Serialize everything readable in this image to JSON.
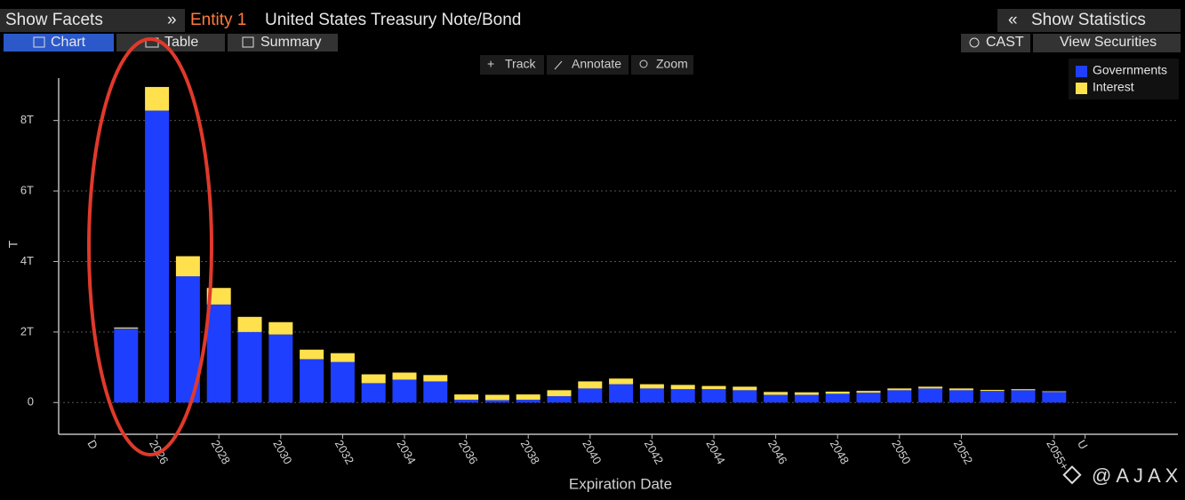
{
  "header": {
    "show_facets": "Show Facets",
    "expand": "»",
    "entity": "Entity 1",
    "security": "United States Treasury Note/Bond",
    "collapse": "«",
    "show_statistics": "Show Statistics"
  },
  "tabs": [
    "Chart",
    "Table",
    "Summary"
  ],
  "buttons": [
    "CAST",
    "View Securities"
  ],
  "tools": [
    "Track",
    "Annotate",
    "Zoom"
  ],
  "watermark": "@AJAX",
  "chart_data": {
    "type": "bar",
    "stacked": true,
    "x_label": "Expiration Date",
    "y_label": "T",
    "categories": [
      "D",
      null,
      "2026",
      null,
      "2028",
      null,
      "2030",
      null,
      "2032",
      null,
      "2034",
      null,
      "2036",
      null,
      "2038",
      null,
      "2040",
      null,
      "2042",
      null,
      "2044",
      null,
      "2046",
      null,
      "2048",
      null,
      "2050",
      null,
      "2052",
      null,
      null,
      "2055+",
      "U"
    ],
    "series": [
      {
        "name": "Governments",
        "color": "#1f3fff",
        "values": [
          null,
          2.1,
          8.28,
          3.58,
          2.78,
          2.0,
          1.93,
          1.23,
          1.15,
          0.55,
          0.65,
          0.6,
          0.08,
          0.07,
          0.08,
          0.18,
          0.4,
          0.52,
          0.4,
          0.38,
          0.38,
          0.35,
          0.22,
          0.22,
          0.25,
          0.28,
          0.35,
          0.4,
          0.35,
          0.33,
          0.35,
          0.3,
          null
        ]
      },
      {
        "name": "Interest",
        "color": "#ffe14d",
        "values": [
          null,
          0.03,
          0.67,
          0.57,
          0.47,
          0.43,
          0.35,
          0.27,
          0.25,
          0.25,
          0.2,
          0.18,
          0.15,
          0.15,
          0.15,
          0.17,
          0.2,
          0.16,
          0.12,
          0.12,
          0.09,
          0.1,
          0.08,
          0.07,
          0.06,
          0.05,
          0.05,
          0.05,
          0.05,
          0.03,
          0.03,
          0.02,
          null
        ]
      }
    ],
    "ylim": [
      -0.9,
      9.2
    ],
    "yticks": [
      0,
      {
        "value": 2,
        "label": "2T"
      },
      {
        "value": 4,
        "label": "4T"
      },
      {
        "value": 6,
        "label": "6T"
      },
      {
        "value": 8,
        "label": "8T"
      }
    ],
    "grid": true,
    "legend": "top-right"
  }
}
